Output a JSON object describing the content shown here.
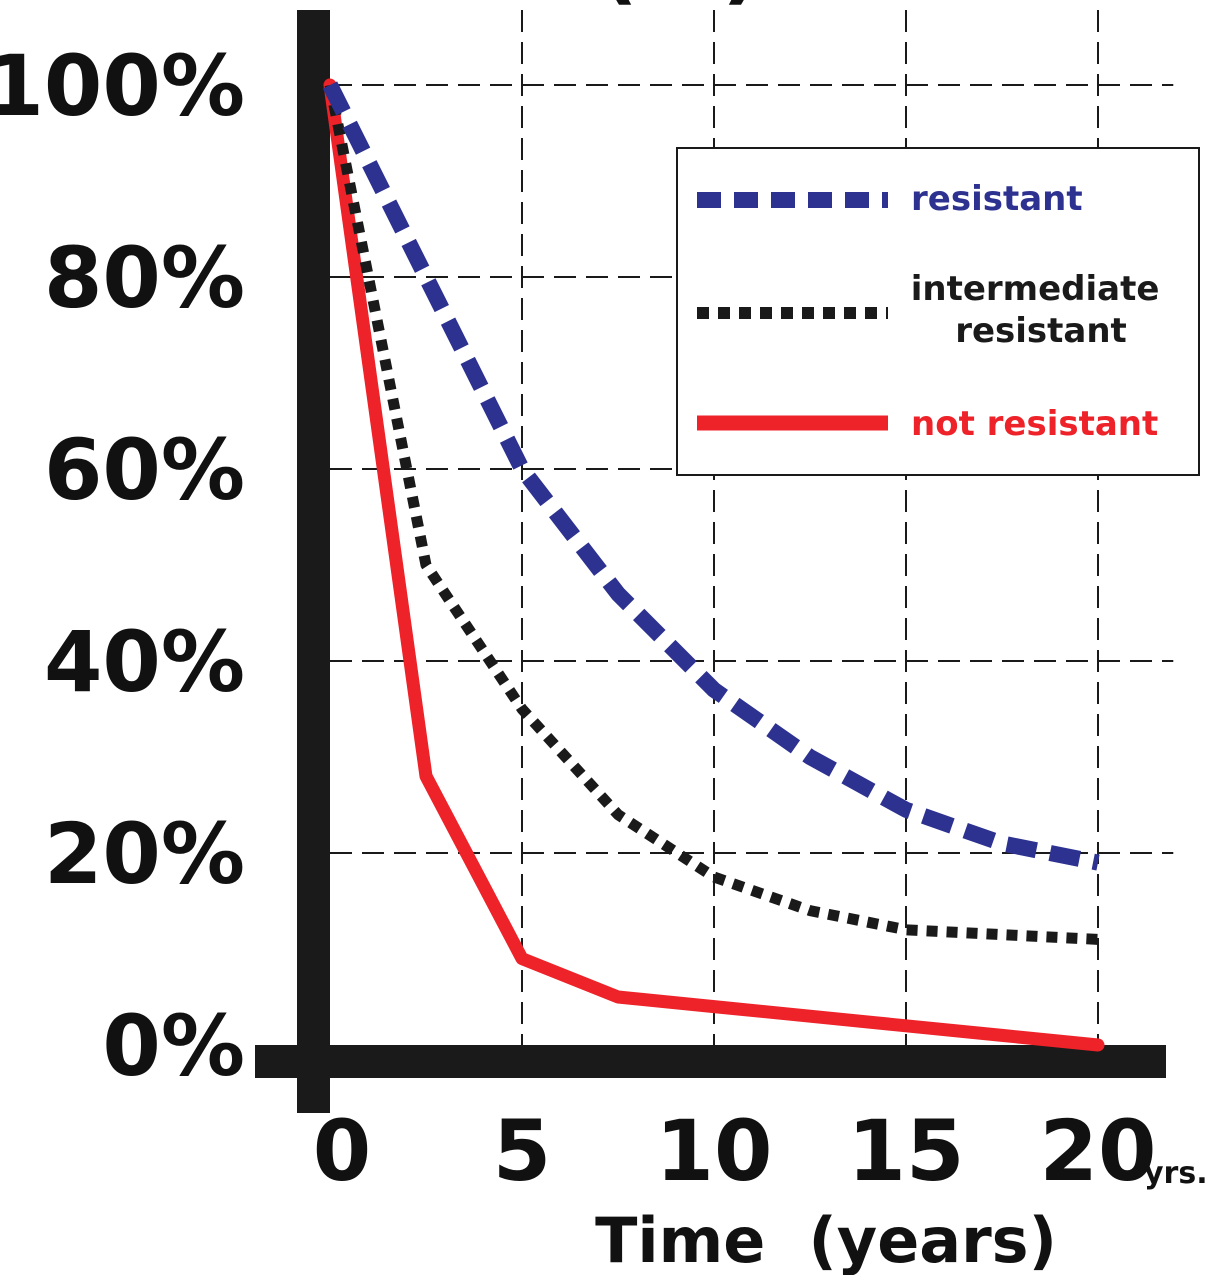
{
  "chart_data": {
    "type": "line",
    "title_partial": "(%)",
    "xlabel": "Time  (years)",
    "x_unit": "yrs.",
    "xlim": [
      0,
      21.7
    ],
    "ylim": [
      0,
      100
    ],
    "x_ticks": [
      "0",
      "5",
      "10",
      "15",
      "20"
    ],
    "y_ticks": [
      "0%",
      "20%",
      "40%",
      "60%",
      "80%",
      "100%"
    ],
    "grid": true,
    "legend_position": "top-right",
    "series": [
      {
        "name": "resistant",
        "color": "#2d3290",
        "style": "dashed",
        "x": [
          0,
          2.5,
          5,
          7.5,
          10,
          12.5,
          15,
          17.5,
          20
        ],
        "y": [
          100,
          80,
          60,
          47,
          37,
          30,
          24.5,
          21,
          19
        ]
      },
      {
        "name": "intermediate resistant",
        "color": "#1a1a1a",
        "style": "dotted",
        "x": [
          0,
          1,
          2.5,
          5,
          7.5,
          10,
          12.5,
          15,
          17.5,
          20
        ],
        "y": [
          100,
          80,
          50,
          35,
          24,
          17.5,
          14,
          12,
          11.5,
          11
        ]
      },
      {
        "name": "not resistant",
        "color": "#ee2229",
        "style": "solid",
        "x": [
          0,
          2.5,
          5,
          7.5,
          10,
          12.5,
          15,
          17.5,
          20
        ],
        "y": [
          100,
          28,
          9,
          5,
          4,
          3,
          2,
          1,
          0
        ]
      }
    ]
  }
}
